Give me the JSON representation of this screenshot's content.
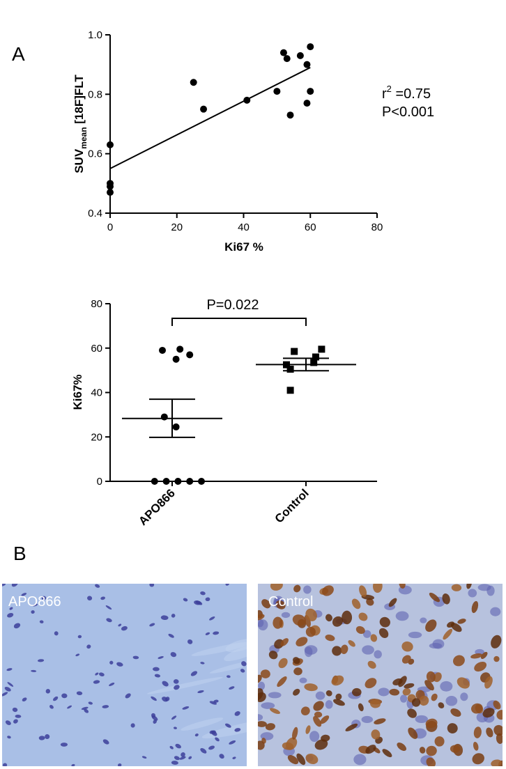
{
  "panels": {
    "a_letter": "A",
    "b_letter": "B"
  },
  "chart_data": [
    {
      "type": "scatter",
      "xlabel": "Ki67 %",
      "ylabel_main": "SUV",
      "ylabel_sub": "mean",
      "ylabel_rest": " [18F]FLT",
      "xlim": [
        0,
        80
      ],
      "ylim": [
        0.4,
        1.0
      ],
      "xticks": [
        0,
        20,
        40,
        60,
        80
      ],
      "yticks": [
        0.4,
        0.6,
        0.8,
        1.0
      ],
      "xtick_labels": [
        "0",
        "20",
        "40",
        "60",
        "80"
      ],
      "ytick_labels": [
        "0.4",
        "0.6",
        "0.8",
        "1.0"
      ],
      "points": [
        {
          "x": 0,
          "y": 0.63
        },
        {
          "x": 0,
          "y": 0.5
        },
        {
          "x": 0,
          "y": 0.49
        },
        {
          "x": 0,
          "y": 0.47
        },
        {
          "x": 25,
          "y": 0.84
        },
        {
          "x": 28,
          "y": 0.75
        },
        {
          "x": 41,
          "y": 0.78
        },
        {
          "x": 50,
          "y": 0.81
        },
        {
          "x": 52,
          "y": 0.94
        },
        {
          "x": 53,
          "y": 0.92
        },
        {
          "x": 54,
          "y": 0.73
        },
        {
          "x": 57,
          "y": 0.93
        },
        {
          "x": 59,
          "y": 0.9
        },
        {
          "x": 59,
          "y": 0.77
        },
        {
          "x": 60,
          "y": 0.96
        },
        {
          "x": 60,
          "y": 0.81
        }
      ],
      "regression": {
        "x0": 0,
        "y0": 0.55,
        "x1": 60,
        "y1": 0.89
      },
      "r2_base": "r",
      "r2_sup": "2",
      "r2_value": " =0.75",
      "p_value": "P<0.001",
      "grid": false
    },
    {
      "type": "scatter",
      "ylabel": "Ki67%",
      "ylim": [
        0,
        80
      ],
      "yticks": [
        0,
        20,
        40,
        60,
        80
      ],
      "ytick_labels": [
        "0",
        "20",
        "40",
        "60",
        "80"
      ],
      "categories": [
        "APO866",
        "Control"
      ],
      "groups": [
        {
          "name": "APO866",
          "marker": "circle",
          "values": [
            0,
            0,
            0,
            0,
            0,
            24.5,
            29,
            55,
            57,
            59,
            59.5
          ],
          "jitter": [
            -9,
            -3,
            3,
            9,
            15,
            2,
            -4,
            2,
            9,
            -5,
            4
          ],
          "mean": 28.3,
          "sem_low": 19.8,
          "sem_high": 37.0
        },
        {
          "name": "Control",
          "marker": "square",
          "values": [
            41,
            50.5,
            52.5,
            53.5,
            56,
            58.5,
            59.5
          ],
          "jitter": [
            -8,
            -8,
            -10,
            4,
            5,
            -6,
            8
          ],
          "mean": 52.6,
          "sem_low": 49.8,
          "sem_high": 55.4
        }
      ],
      "comparison": "P=0.022",
      "grid": false
    }
  ],
  "micrographs": [
    {
      "label": "APO866",
      "stain": "hematoxylin-blue"
    },
    {
      "label": "Control",
      "stain": "ki67-brown"
    }
  ],
  "colors": {
    "ink": "#000000",
    "tissue_blue": "#a9bfe6",
    "nuclei_blue": "#3d3f9a",
    "tissue_bg_control": "#b7c2de",
    "nuclei_brown": "#7a3d12"
  }
}
